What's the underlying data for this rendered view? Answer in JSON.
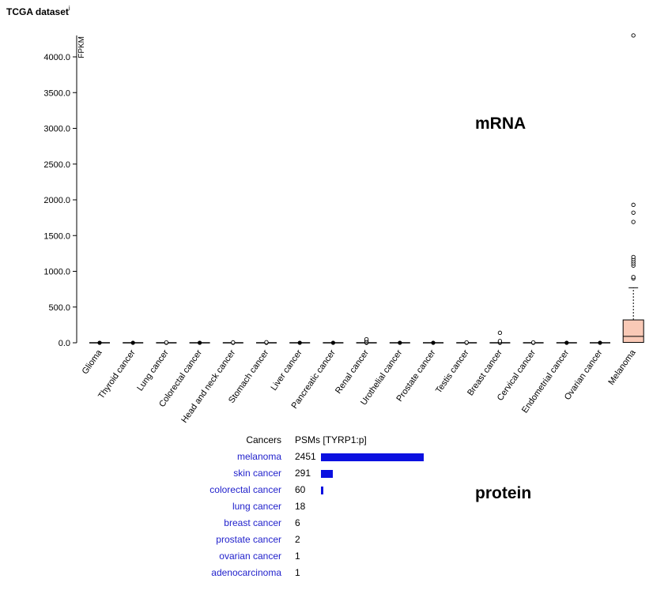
{
  "dataset_title": "TCGA dataset",
  "dataset_info_marker": "i",
  "chart_data": {
    "type": "box",
    "ylabel": "FPKM",
    "ylim": [
      0,
      4300
    ],
    "yticks": [
      "0.0",
      "500.0",
      "1000.0",
      "1500.0",
      "2000.0",
      "2500.0",
      "3000.0",
      "3500.0",
      "4000.0"
    ],
    "annotation": "mRNA",
    "categories": [
      "Glioma",
      "Thyroid cancer",
      "Lung cancer",
      "Colorectal cancer",
      "Head and neck cancer",
      "Stomach cancer",
      "Liver cancer",
      "Pancreatic cancer",
      "Renal cancer",
      "Urothelial cancer",
      "Prostate cancer",
      "Testis cancer",
      "Breast cancer",
      "Cervical cancer",
      "Endometrial cancer",
      "Ovarian cancer",
      "Melanoma"
    ],
    "boxes": [
      {
        "min": 0,
        "q1": 0,
        "median": 0,
        "q3": 1,
        "max": 2,
        "outliers": []
      },
      {
        "min": 0,
        "q1": 0,
        "median": 0,
        "q3": 1,
        "max": 2,
        "outliers": []
      },
      {
        "min": 0,
        "q1": 0,
        "median": 0,
        "q3": 1,
        "max": 3,
        "outliers": [
          5
        ]
      },
      {
        "min": 0,
        "q1": 0,
        "median": 0,
        "q3": 1,
        "max": 2,
        "outliers": []
      },
      {
        "min": 0,
        "q1": 0,
        "median": 0,
        "q3": 1,
        "max": 3,
        "outliers": [
          6
        ]
      },
      {
        "min": 0,
        "q1": 0,
        "median": 0,
        "q3": 1,
        "max": 3,
        "outliers": [
          8
        ]
      },
      {
        "min": 0,
        "q1": 0,
        "median": 0,
        "q3": 1,
        "max": 2,
        "outliers": []
      },
      {
        "min": 0,
        "q1": 0,
        "median": 0,
        "q3": 1,
        "max": 2,
        "outliers": []
      },
      {
        "min": 0,
        "q1": 0,
        "median": 0,
        "q3": 1,
        "max": 3,
        "outliers": [
          10,
          30,
          50
        ]
      },
      {
        "min": 0,
        "q1": 0,
        "median": 0,
        "q3": 1,
        "max": 2,
        "outliers": []
      },
      {
        "min": 0,
        "q1": 0,
        "median": 0,
        "q3": 1,
        "max": 2,
        "outliers": []
      },
      {
        "min": 0,
        "q1": 0,
        "median": 0,
        "q3": 1,
        "max": 3,
        "outliers": [
          5
        ]
      },
      {
        "min": 0,
        "q1": 0,
        "median": 0,
        "q3": 1,
        "max": 3,
        "outliers": [
          10,
          25,
          140
        ]
      },
      {
        "min": 0,
        "q1": 0,
        "median": 0,
        "q3": 1,
        "max": 2,
        "outliers": [
          5
        ]
      },
      {
        "min": 0,
        "q1": 0,
        "median": 0,
        "q3": 1,
        "max": 2,
        "outliers": []
      },
      {
        "min": 0,
        "q1": 0,
        "median": 0,
        "q3": 1,
        "max": 2,
        "outliers": []
      },
      {
        "min": 0,
        "q1": 5,
        "median": 90,
        "q3": 320,
        "max": 770,
        "outliers": [
          900,
          920,
          1080,
          1110,
          1140,
          1170,
          1200,
          1690,
          1820,
          1930,
          4300
        ]
      }
    ],
    "melanoma_color": "#f9c9b6"
  },
  "protein": {
    "annotation": "protein",
    "header_cancers": "Cancers",
    "header_psms": "PSMs",
    "header_gene": "[TYRP1:p]",
    "bar_color": "#0b10e0",
    "rows": [
      {
        "name": "melanoma",
        "count": 2451
      },
      {
        "name": "skin cancer",
        "count": 291
      },
      {
        "name": "colorectal cancer",
        "count": 60
      },
      {
        "name": "lung cancer",
        "count": 18
      },
      {
        "name": "breast cancer",
        "count": 6
      },
      {
        "name": "prostate cancer",
        "count": 2
      },
      {
        "name": "ovarian cancer",
        "count": 1
      },
      {
        "name": "adenocarcinoma",
        "count": 1
      }
    ]
  }
}
